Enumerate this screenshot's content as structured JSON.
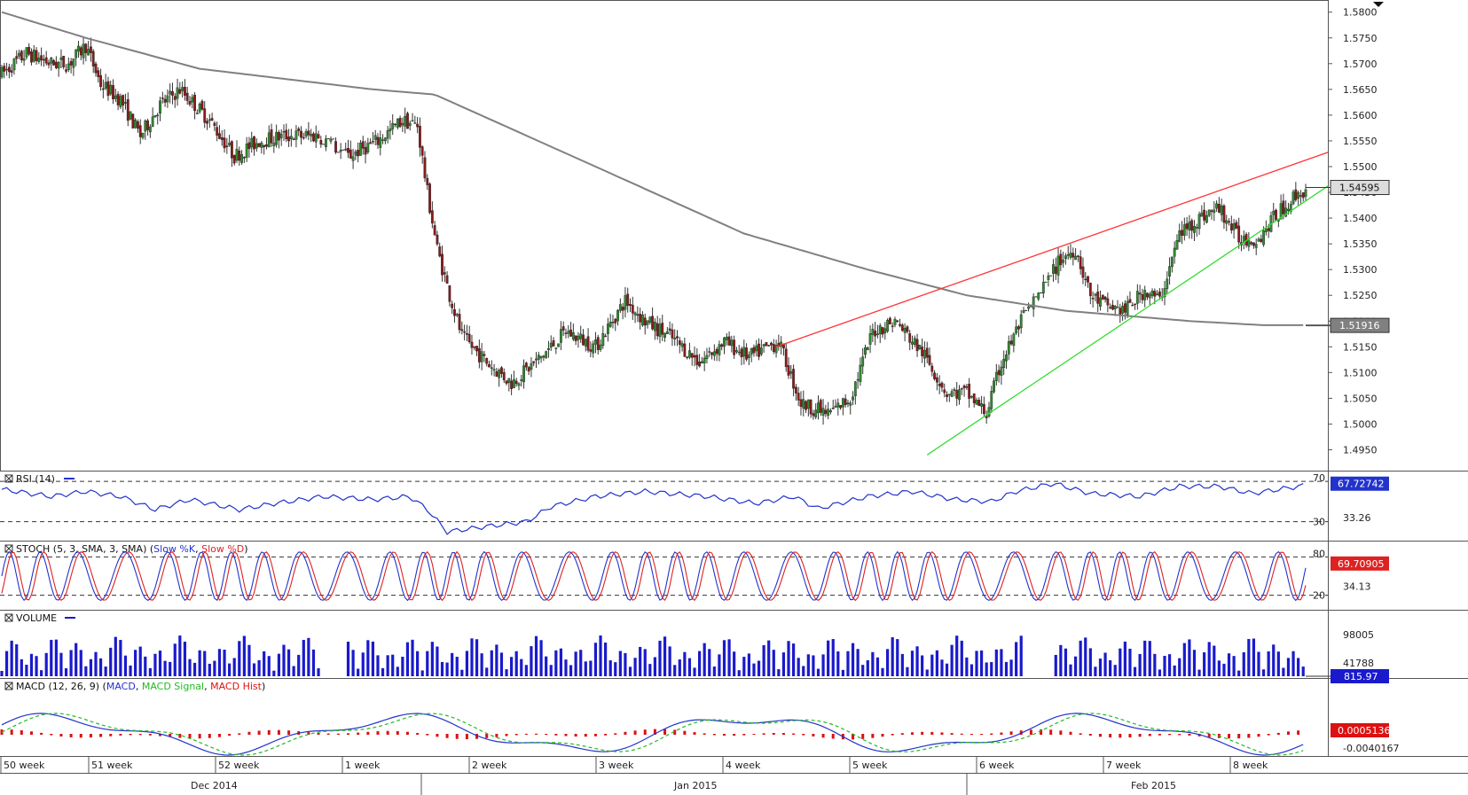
{
  "chart_data": {
    "type": "candlestick",
    "price_axis": {
      "ticks": [
        "1.5800",
        "1.5750",
        "1.5700",
        "1.5650",
        "1.5600",
        "1.5550",
        "1.5500",
        "1.5450",
        "1.5400",
        "1.5350",
        "1.5300",
        "1.5250",
        "1.5200",
        "1.5150",
        "1.5100",
        "1.5050",
        "1.5000",
        "1.4950"
      ],
      "range": [
        1.4925,
        1.5815
      ],
      "last_price_tag": "1.54595",
      "ma_tag": "1.51916"
    },
    "time_axis": {
      "weeks": [
        "50 week",
        "51 week",
        "52 week",
        "1 week",
        "2 week",
        "3 week",
        "4 week",
        "5 week",
        "6 week",
        "7 week",
        "8 week"
      ],
      "months": [
        "Dec 2014",
        "Jan 2015",
        "Feb 2015"
      ]
    },
    "price_anchors": [
      [
        0,
        1.568
      ],
      [
        10,
        1.572
      ],
      [
        20,
        1.57
      ],
      [
        27,
        1.57
      ],
      [
        34,
        1.5735
      ],
      [
        40,
        1.566
      ],
      [
        48,
        1.563
      ],
      [
        56,
        1.556
      ],
      [
        64,
        1.562
      ],
      [
        72,
        1.565
      ],
      [
        84,
        1.559
      ],
      [
        94,
        1.552
      ],
      [
        104,
        1.555
      ],
      [
        115,
        1.556
      ],
      [
        128,
        1.556
      ],
      [
        140,
        1.552
      ],
      [
        152,
        1.555
      ],
      [
        162,
        1.559
      ],
      [
        168,
        1.558
      ],
      [
        172,
        1.545
      ],
      [
        176,
        1.534
      ],
      [
        181,
        1.525
      ],
      [
        186,
        1.517
      ],
      [
        196,
        1.512
      ],
      [
        206,
        1.508
      ],
      [
        218,
        1.513
      ],
      [
        228,
        1.518
      ],
      [
        240,
        1.515
      ],
      [
        252,
        1.524
      ],
      [
        260,
        1.52
      ],
      [
        270,
        1.517
      ],
      [
        282,
        1.512
      ],
      [
        292,
        1.516
      ],
      [
        302,
        1.513
      ],
      [
        314,
        1.516
      ],
      [
        323,
        1.504
      ],
      [
        334,
        1.502
      ],
      [
        343,
        1.505
      ],
      [
        352,
        1.518
      ],
      [
        361,
        1.52
      ],
      [
        372,
        1.514
      ],
      [
        382,
        1.506
      ],
      [
        390,
        1.506
      ],
      [
        398,
        1.502
      ],
      [
        404,
        1.512
      ],
      [
        412,
        1.52
      ],
      [
        420,
        1.526
      ],
      [
        428,
        1.532
      ],
      [
        434,
        1.534
      ],
      [
        440,
        1.525
      ],
      [
        446,
        1.523
      ],
      [
        454,
        1.522
      ],
      [
        462,
        1.526
      ],
      [
        468,
        1.524
      ],
      [
        476,
        1.537
      ],
      [
        484,
        1.54
      ],
      [
        492,
        1.542
      ],
      [
        500,
        1.536
      ],
      [
        508,
        1.536
      ],
      [
        514,
        1.54
      ],
      [
        522,
        1.544
      ],
      [
        527,
        1.5455
      ]
    ],
    "ma_anchors": [
      [
        0,
        1.58
      ],
      [
        34,
        1.575
      ],
      [
        80,
        1.569
      ],
      [
        150,
        1.565
      ],
      [
        175,
        1.564
      ],
      [
        240,
        1.55
      ],
      [
        300,
        1.537
      ],
      [
        350,
        1.53
      ],
      [
        390,
        1.525
      ],
      [
        430,
        1.522
      ],
      [
        480,
        1.52
      ],
      [
        510,
        1.5192
      ],
      [
        527,
        1.5192
      ]
    ],
    "ma_tag_value": 1.51916,
    "last_price_value": 1.54595,
    "trendlines": [
      {
        "color": "#ff3333",
        "from": [
          313,
          1.515
        ],
        "to": [
          527,
          1.55
        ]
      },
      {
        "color": "#33dd33",
        "from": [
          374,
          1.494
        ],
        "to": [
          527,
          1.541
        ]
      }
    ],
    "rsi": {
      "label": "RSI (14)",
      "levels": [
        "70",
        "30"
      ],
      "right_labels": [
        "33.26"
      ],
      "value_tag": "67.72742",
      "range": [
        13,
        78
      ],
      "anchors": [
        [
          0,
          62
        ],
        [
          20,
          55
        ],
        [
          34,
          60
        ],
        [
          48,
          55
        ],
        [
          62,
          42
        ],
        [
          76,
          52
        ],
        [
          96,
          42
        ],
        [
          110,
          48
        ],
        [
          130,
          55
        ],
        [
          150,
          52
        ],
        [
          165,
          55
        ],
        [
          172,
          42
        ],
        [
          180,
          20
        ],
        [
          195,
          25
        ],
        [
          212,
          30
        ],
        [
          222,
          45
        ],
        [
          240,
          55
        ],
        [
          260,
          60
        ],
        [
          285,
          55
        ],
        [
          305,
          48
        ],
        [
          320,
          55
        ],
        [
          330,
          43
        ],
        [
          350,
          55
        ],
        [
          368,
          60
        ],
        [
          385,
          52
        ],
        [
          400,
          50
        ],
        [
          410,
          60
        ],
        [
          425,
          68
        ],
        [
          440,
          58
        ],
        [
          460,
          55
        ],
        [
          476,
          65
        ],
        [
          492,
          65
        ],
        [
          505,
          58
        ],
        [
          527,
          66
        ]
      ]
    },
    "stoch": {
      "label": "STOCH (5, 3, SMA, 3, SMA)",
      "legend": [
        "Slow %K",
        "Slow %D"
      ],
      "levels": [
        "80",
        "20"
      ],
      "right_labels": [
        "34.13"
      ],
      "value_tag": "69.70905"
    },
    "volume": {
      "label": "VOLUME",
      "right_labels": [
        "98005",
        "41788"
      ],
      "value_tag": "815.97"
    },
    "macd": {
      "label": "MACD (12, 26, 9)",
      "legend": [
        "MACD",
        "MACD Signal",
        "MACD Hist"
      ],
      "right_labels": [
        "-0.0040167"
      ],
      "value_tag": "0.0005136"
    },
    "colors": {
      "bull": "#2e8b2e",
      "bear": "#8b1a1a",
      "ma": "#808080",
      "rsi": "#2233cc",
      "stoch_k": "#2233cc",
      "stoch_d": "#dd2222",
      "volume": "#1a1acc",
      "macd": "#2233cc",
      "signal": "#22bb22",
      "hist": "#dd1111",
      "upper_trend": "#ff3333",
      "lower_trend": "#33dd33"
    }
  }
}
